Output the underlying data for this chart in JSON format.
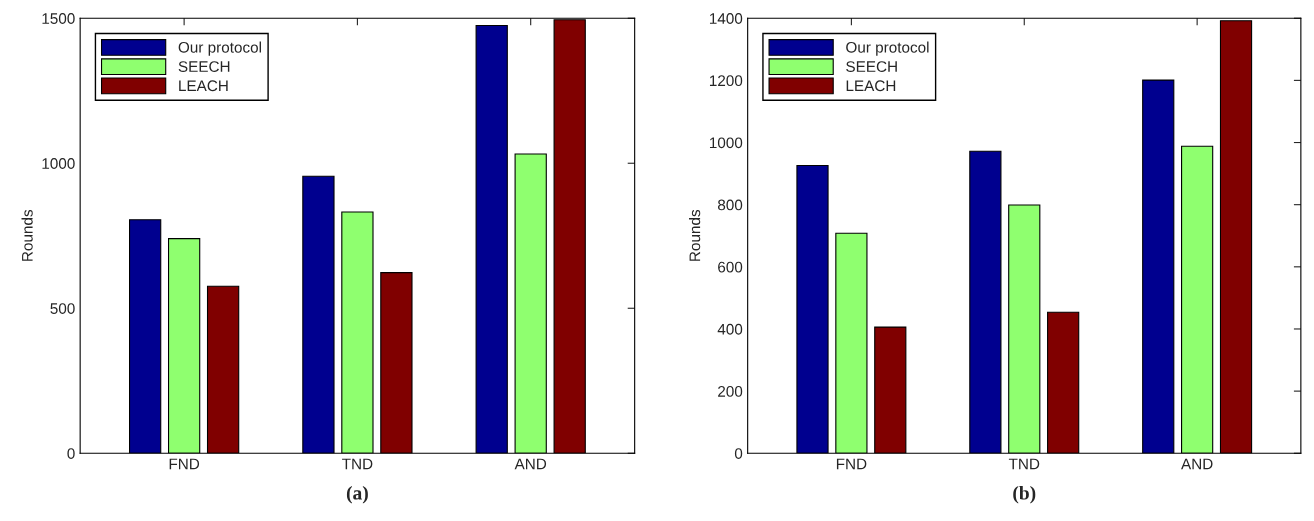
{
  "chart_data": [
    {
      "type": "bar",
      "categories": [
        "FND",
        "TND",
        "AND"
      ],
      "ylabel": "Rounds",
      "ylim": [
        0,
        1500
      ],
      "yticks": [
        0,
        500,
        1000,
        1500
      ],
      "legend": "top left",
      "grid": false,
      "annotations": [
        "(a)"
      ],
      "series": [
        {
          "name": "Our protocol",
          "color": "#00008f",
          "values": [
            805,
            955,
            1475
          ]
        },
        {
          "name": "SEECH",
          "color": "#8fff6f",
          "values": [
            740,
            832,
            1032
          ]
        },
        {
          "name": "LEACH",
          "color": "#800000",
          "values": [
            576,
            623,
            1495
          ]
        }
      ]
    },
    {
      "type": "bar",
      "categories": [
        "FND",
        "TND",
        "AND"
      ],
      "ylabel": "Rounds",
      "ylim": [
        0,
        1400
      ],
      "yticks": [
        0,
        200,
        400,
        600,
        800,
        1000,
        1200,
        1400
      ],
      "legend": "top left",
      "grid": false,
      "annotations": [
        "(b)"
      ],
      "series": [
        {
          "name": "Our protocol",
          "color": "#00008f",
          "values": [
            926,
            972,
            1201
          ]
        },
        {
          "name": "SEECH",
          "color": "#8fff6f",
          "values": [
            708,
            799,
            988
          ]
        },
        {
          "name": "LEACH",
          "color": "#800000",
          "values": [
            406,
            454,
            1392
          ]
        }
      ]
    }
  ]
}
